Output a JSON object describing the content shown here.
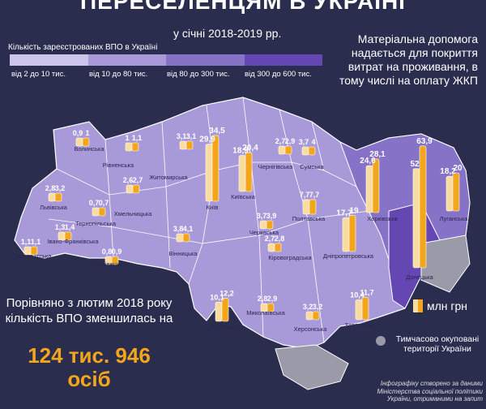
{
  "title": "ПЕРЕСЕЛЕНЦЯМ В УКРАЇНІ",
  "period": "у січні 2018-2019 рр.",
  "legend": {
    "title": "Кількість зареєстрованих ВПО в Україні",
    "bins": [
      {
        "label": "від 2 до 10 тис.",
        "color": "#cbc4ec"
      },
      {
        "label": "від 10 до 80 тис.",
        "color": "#a89ad9"
      },
      {
        "label": "від 80 до 300 тис.",
        "color": "#8673c7"
      },
      {
        "label": "від 300 до 600 тис.",
        "color": "#6447b2"
      }
    ]
  },
  "aid_note": "Матеріальна допомога надається для покриття витрат на проживання, в тому числі на оплату ЖКП",
  "comparison": {
    "text": "Порівняно з лютим 2018 року кількість ВПО зменшилась на",
    "amount": "124 тис. 946",
    "unit": "осіб"
  },
  "unit_label": "млн грн",
  "occupied_label": "Тимчасово окуповані території України",
  "source_note": "Інфографіку створено за даними Міністерства соціальної політики України, отриманими на запит",
  "colors": {
    "background": "#2b2d4f",
    "bar_fill": "#f3a51c",
    "bar_light": "#fbdca0",
    "occupied": "#9a9aa8"
  },
  "chart_data": {
    "type": "bar",
    "title": "ПЕРЕСЕЛЕНЦЯМ В УКРАЇНІ",
    "subtitle": "у січні 2018-2019 рр.",
    "unit": "млн грн",
    "series": [
      {
        "name": "2018",
        "color": "#fbdca0"
      },
      {
        "name": "2019",
        "color": "#f3a51c"
      }
    ],
    "regions": [
      {
        "name": "Волинська",
        "v2018": 0.9,
        "v2019": 1,
        "labels": [
          "0,9",
          "1"
        ]
      },
      {
        "name": "Рівненська",
        "v2018": 1,
        "v2019": 1.1,
        "labels": [
          "1",
          "1,1"
        ]
      },
      {
        "name": "Житомирська",
        "v2018": 3.1,
        "v2019": 3.1,
        "labels": [
          "3,1",
          "3,1"
        ]
      },
      {
        "name": "Київ",
        "v2018": 29.9,
        "v2019": 34.5,
        "labels": [
          "29,9",
          "34,5"
        ]
      },
      {
        "name": "Київська",
        "v2018": 18.9,
        "v2019": 20.4,
        "labels": [
          "18,9",
          "20,4"
        ]
      },
      {
        "name": "Чернігівська",
        "v2018": 2.7,
        "v2019": 2.9,
        "labels": [
          "2,7",
          "2,9"
        ]
      },
      {
        "name": "Сумська",
        "v2018": 3.7,
        "v2019": 4,
        "labels": [
          "3,7",
          "4"
        ]
      },
      {
        "name": "Харківська",
        "v2018": 24.6,
        "v2019": 28.1,
        "labels": [
          "24,6",
          "28,1"
        ]
      },
      {
        "name": "Донецька",
        "v2018": 52,
        "v2019": 63.9,
        "labels": [
          "52",
          "63,9"
        ]
      },
      {
        "name": "Луганська",
        "v2018": 18.2,
        "v2019": 20,
        "labels": [
          "18,2",
          "20"
        ]
      },
      {
        "name": "Львівська",
        "v2018": 2.8,
        "v2019": 3.2,
        "labels": [
          "2,8",
          "3,2"
        ]
      },
      {
        "name": "Тернопільська",
        "v2018": 0.7,
        "v2019": 0.7,
        "labels": [
          "0,7",
          "0,7"
        ]
      },
      {
        "name": "Хмельницька",
        "v2018": 2.6,
        "v2019": 2.7,
        "labels": [
          "2,6",
          "2,7"
        ]
      },
      {
        "name": "Вінницька",
        "v2018": 3.8,
        "v2019": 4.1,
        "labels": [
          "3,8",
          "4,1"
        ]
      },
      {
        "name": "Черкаська",
        "v2018": 3.7,
        "v2019": 3.9,
        "labels": [
          "3,7",
          "3,9"
        ]
      },
      {
        "name": "Полтавська",
        "v2018": 7.7,
        "v2019": 7.7,
        "labels": [
          "7,7",
          "7,7"
        ]
      },
      {
        "name": "Дніпропетровська",
        "v2018": 17.7,
        "v2019": 19,
        "labels": [
          "17,7",
          "19"
        ]
      },
      {
        "name": "Закарпатська",
        "v2018": 1.1,
        "v2019": 1.1,
        "labels": [
          "1,1",
          "1,1"
        ]
      },
      {
        "name": "Івано-Франківська",
        "v2018": 1.3,
        "v2019": 1.4,
        "labels": [
          "1,3",
          "1,4"
        ]
      },
      {
        "name": "Чернівецька",
        "v2018": 0.8,
        "v2019": 0.9,
        "labels": [
          "0,8",
          "0,9"
        ]
      },
      {
        "name": "Кіровоградська",
        "v2018": 2.7,
        "v2019": 2.8,
        "labels": [
          "2,7",
          "2,8"
        ]
      },
      {
        "name": "Одеська",
        "v2018": 10.1,
        "v2019": 12.2,
        "labels": [
          "10,1",
          "12,2"
        ]
      },
      {
        "name": "Миколаївська",
        "v2018": 2.8,
        "v2019": 2.9,
        "labels": [
          "2,8",
          "2,9"
        ]
      },
      {
        "name": "Херсонська",
        "v2018": 3.2,
        "v2019": 3.2,
        "labels": [
          "3,2",
          "3,2"
        ]
      },
      {
        "name": "Запорізька",
        "v2018": 10.4,
        "v2019": 11.7,
        "labels": [
          "10,4",
          "11,7"
        ]
      }
    ]
  }
}
